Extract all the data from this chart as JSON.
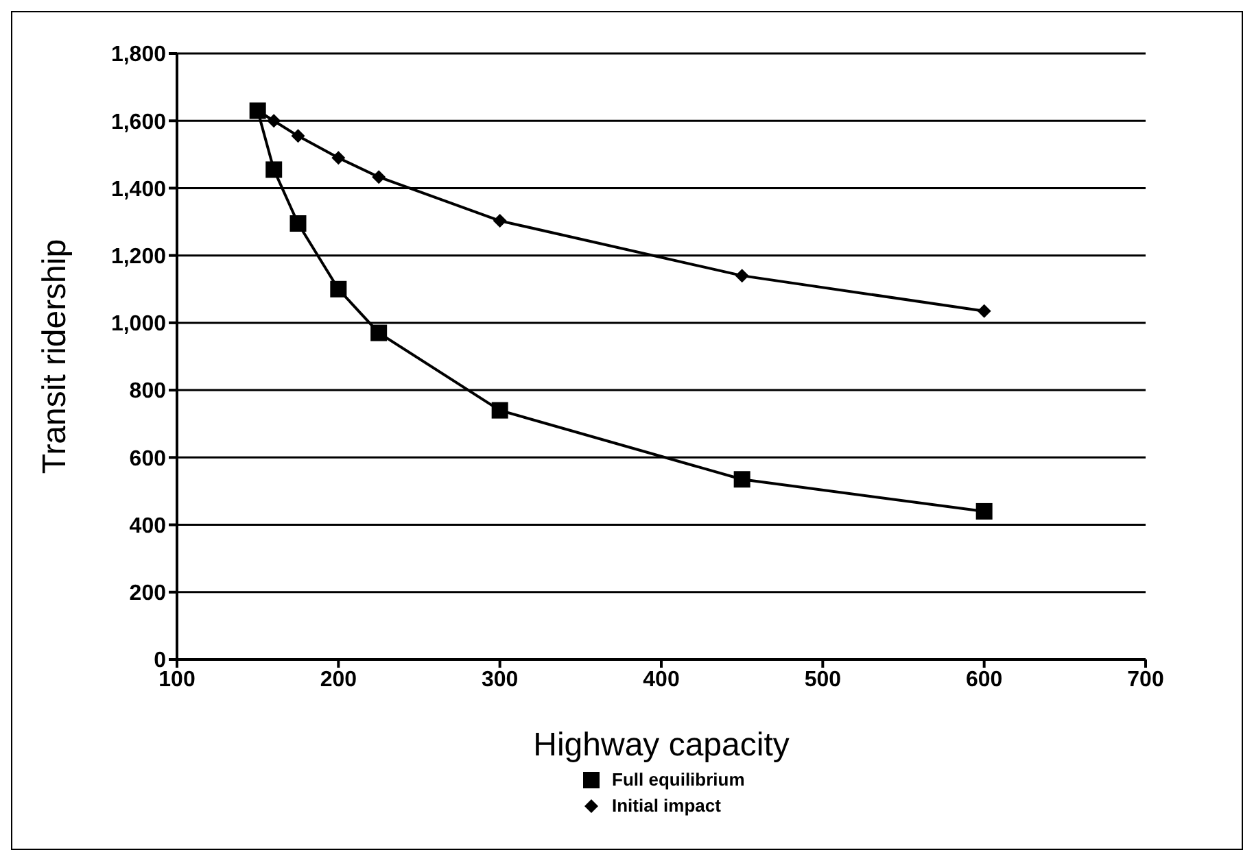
{
  "chart_data": {
    "type": "line",
    "xlabel": "Highway capacity",
    "ylabel": "Transit ridership",
    "series": [
      {
        "name": "Full equilibrium",
        "color": "#000000",
        "marker": "square",
        "x": [
          150,
          160,
          175,
          200,
          225,
          300,
          450,
          600
        ],
        "values": [
          1630,
          1455,
          1295,
          1100,
          970,
          740,
          535,
          440
        ]
      },
      {
        "name": "Initial impact",
        "color": "#000000",
        "marker": "diamond",
        "x": [
          150,
          160,
          175,
          200,
          225,
          300,
          450,
          600
        ],
        "values": [
          1630,
          1600,
          1555,
          1490,
          1433,
          1303,
          1140,
          1035
        ]
      }
    ],
    "xlim": [
      100,
      700
    ],
    "xticks": [
      100,
      200,
      300,
      400,
      500,
      600,
      700
    ],
    "ylim": [
      0,
      1800
    ],
    "yticks": [
      {
        "value": 0,
        "label": "0"
      },
      {
        "value": 200,
        "label": "200"
      },
      {
        "value": 400,
        "label": "400"
      },
      {
        "value": 600,
        "label": "600"
      },
      {
        "value": 800,
        "label": "800"
      },
      {
        "value": 1000,
        "label": "1,000"
      },
      {
        "value": 1200,
        "label": "1,200"
      },
      {
        "value": 1400,
        "label": "1,400"
      },
      {
        "value": 1600,
        "label": "1,600"
      },
      {
        "value": 1800,
        "label": "1,800"
      }
    ],
    "grid": "y",
    "legend": "bottom",
    "line_style": "solid"
  }
}
